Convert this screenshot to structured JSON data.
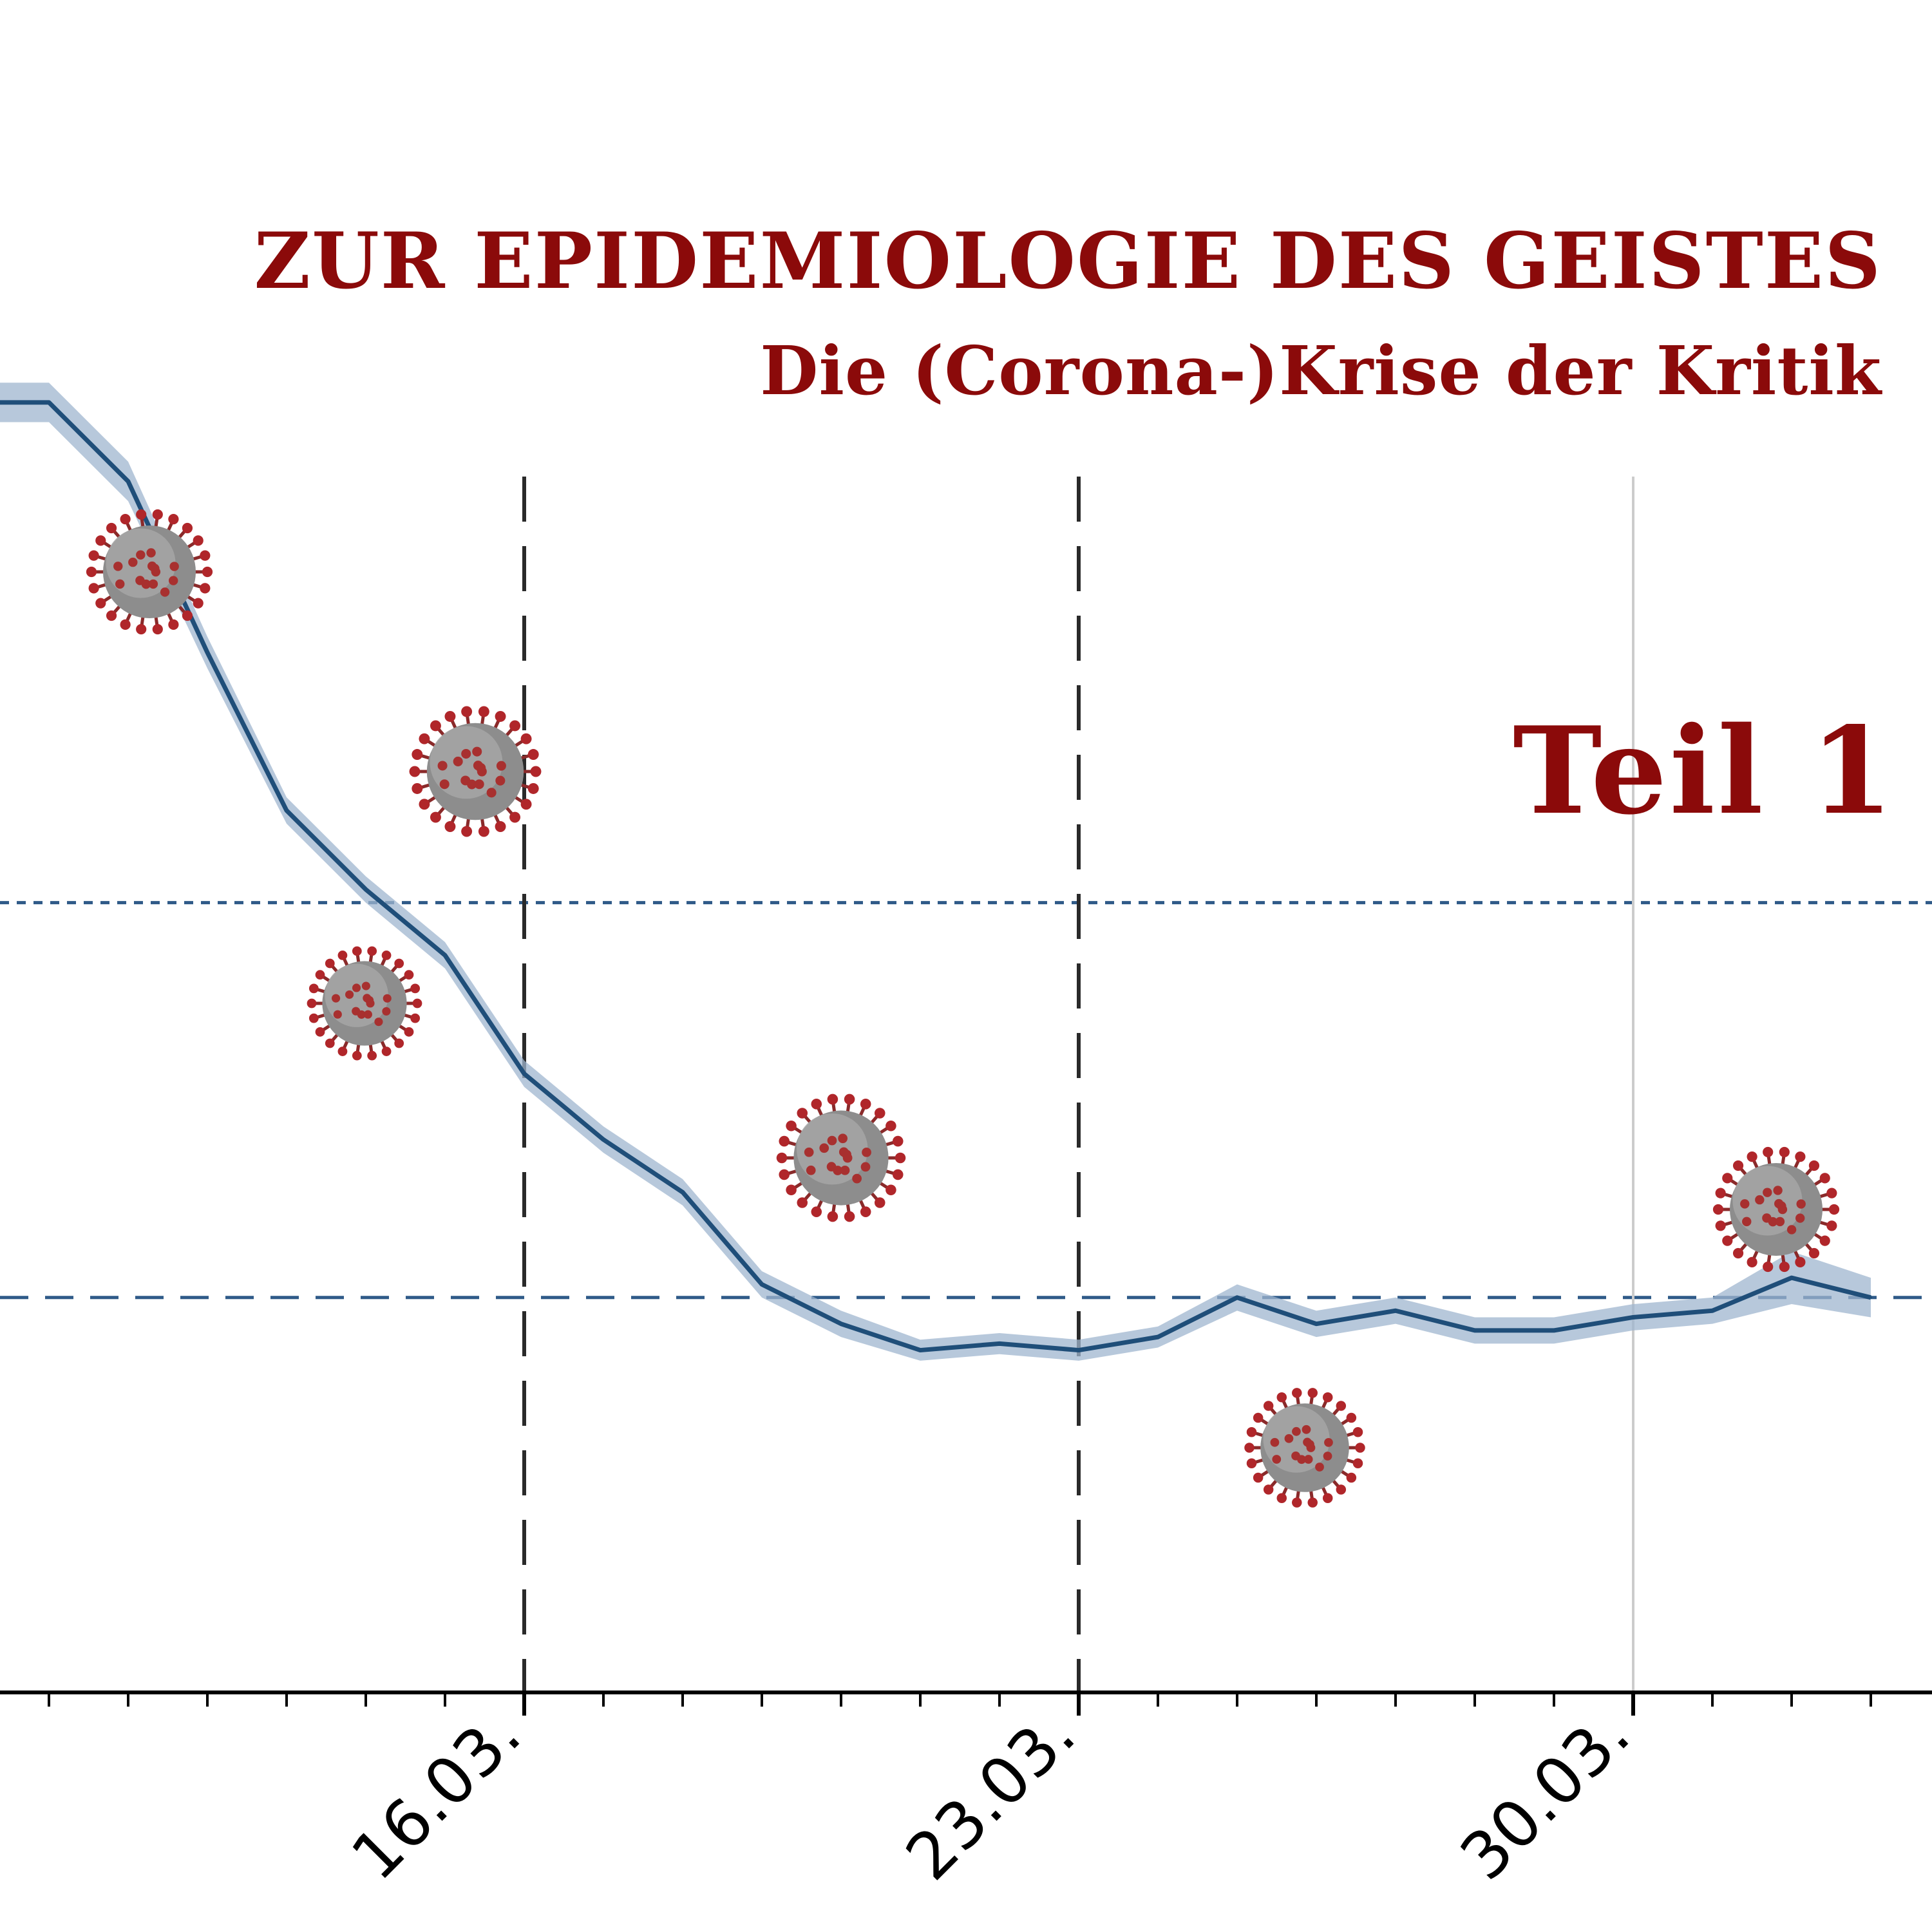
{
  "header": {
    "title": "ZUR EPIDEMIOLOGIE DES GEISTES",
    "subtitle": "Die (Corona-)Krise der Kritik"
  },
  "badge": {
    "label": "Teil 1"
  },
  "colors": {
    "title": "#8b0a0a",
    "line": "#1f4e79",
    "band": "#9fb6cf",
    "axis": "#000000",
    "reference_line": "#2f5a88",
    "virus": "#7a1f1f"
  },
  "decorations": {
    "icon": "coronavirus-icon",
    "count": 7
  },
  "chart_data": {
    "type": "line",
    "x_axis": {
      "type": "date",
      "tick_labels": [
        "16.03.",
        "23.03.",
        "30.03."
      ],
      "range": [
        "2020-03-09",
        "2020-04-02"
      ]
    },
    "y_axis": {
      "tick_labels": [],
      "range": [
        0,
        100
      ]
    },
    "grid": false,
    "legend": "none",
    "vertical_markers": [
      {
        "x": "2020-03-16",
        "style": "dashed"
      },
      {
        "x": "2020-03-23",
        "style": "dashed"
      },
      {
        "x": "2020-03-30",
        "style": "solid-light"
      }
    ],
    "horizontal_reference_lines": [
      {
        "y": 60,
        "style": "dotted"
      },
      {
        "y": 30,
        "style": "dashed"
      }
    ],
    "series": [
      {
        "x": [
          "2020-03-09",
          "2020-03-10",
          "2020-03-11",
          "2020-03-12",
          "2020-03-13",
          "2020-03-14",
          "2020-03-15",
          "2020-03-16",
          "2020-03-17",
          "2020-03-18",
          "2020-03-19",
          "2020-03-20",
          "2020-03-21",
          "2020-03-22",
          "2020-03-23",
          "2020-03-24",
          "2020-03-25",
          "2020-03-26",
          "2020-03-27",
          "2020-03-28",
          "2020-03-29",
          "2020-03-30",
          "2020-03-31",
          "2020-04-01",
          "2020-04-02"
        ],
        "y": [
          98,
          98,
          92,
          79,
          67,
          61,
          56,
          47,
          42,
          38,
          31,
          28,
          26,
          26.5,
          26,
          27,
          30,
          28,
          29,
          27.5,
          27.5,
          28.5,
          29,
          31.5,
          30
        ],
        "band": [
          1.5,
          1.5,
          1.5,
          1.2,
          1,
          1,
          1,
          1,
          1,
          1,
          1,
          1,
          0.8,
          0.8,
          0.8,
          0.8,
          1,
          1,
          1,
          1,
          1,
          1,
          1,
          2,
          1.5
        ]
      }
    ]
  }
}
